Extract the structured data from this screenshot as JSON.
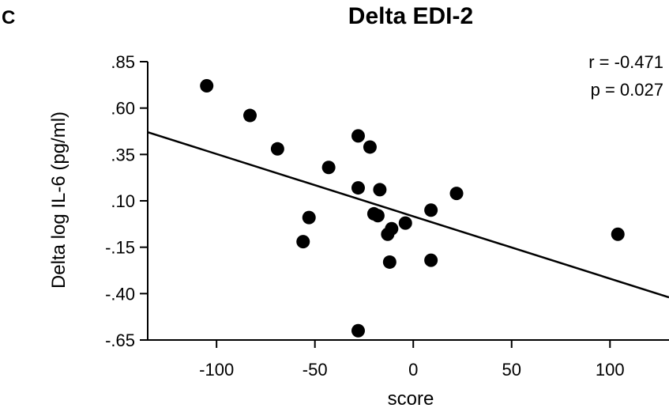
{
  "panel_label": "C",
  "chart_data": {
    "type": "scatter",
    "title": "Delta EDI-2",
    "xlabel": "score",
    "ylabel": "Delta log IL-6 (pg/ml)",
    "xlim": [
      -135,
      130
    ],
    "ylim": [
      -0.65,
      0.85
    ],
    "x_ticks": [
      -100,
      -50,
      0,
      50,
      100
    ],
    "x_tick_labels": [
      "-100",
      "-50",
      "0",
      "50",
      "100"
    ],
    "y_ticks": [
      0.85,
      0.6,
      0.35,
      0.1,
      -0.15,
      -0.4,
      -0.65
    ],
    "y_tick_labels": [
      ".85",
      ".60",
      ".35",
      ".10",
      "-.15",
      "-.40",
      "-.65"
    ],
    "grid": false,
    "points": [
      {
        "x": -105,
        "y": 0.72
      },
      {
        "x": -83,
        "y": 0.56
      },
      {
        "x": -69,
        "y": 0.38
      },
      {
        "x": -43,
        "y": 0.28
      },
      {
        "x": -28,
        "y": 0.45
      },
      {
        "x": -22,
        "y": 0.39
      },
      {
        "x": -28,
        "y": 0.17
      },
      {
        "x": -17,
        "y": 0.16
      },
      {
        "x": -53,
        "y": 0.01
      },
      {
        "x": -56,
        "y": -0.12
      },
      {
        "x": -20,
        "y": 0.03
      },
      {
        "x": -18,
        "y": 0.02
      },
      {
        "x": -4,
        "y": -0.02
      },
      {
        "x": -11,
        "y": -0.05
      },
      {
        "x": -13,
        "y": -0.08
      },
      {
        "x": 9,
        "y": 0.05
      },
      {
        "x": 22,
        "y": 0.14
      },
      {
        "x": -12,
        "y": -0.23
      },
      {
        "x": 9,
        "y": -0.22
      },
      {
        "x": -28,
        "y": -0.6
      },
      {
        "x": 104,
        "y": -0.08
      }
    ],
    "trendline": {
      "x": [
        -135,
        130
      ],
      "y": [
        0.47,
        -0.42
      ]
    },
    "annotations": [
      "r = -0.471",
      "p = 0.027"
    ]
  }
}
